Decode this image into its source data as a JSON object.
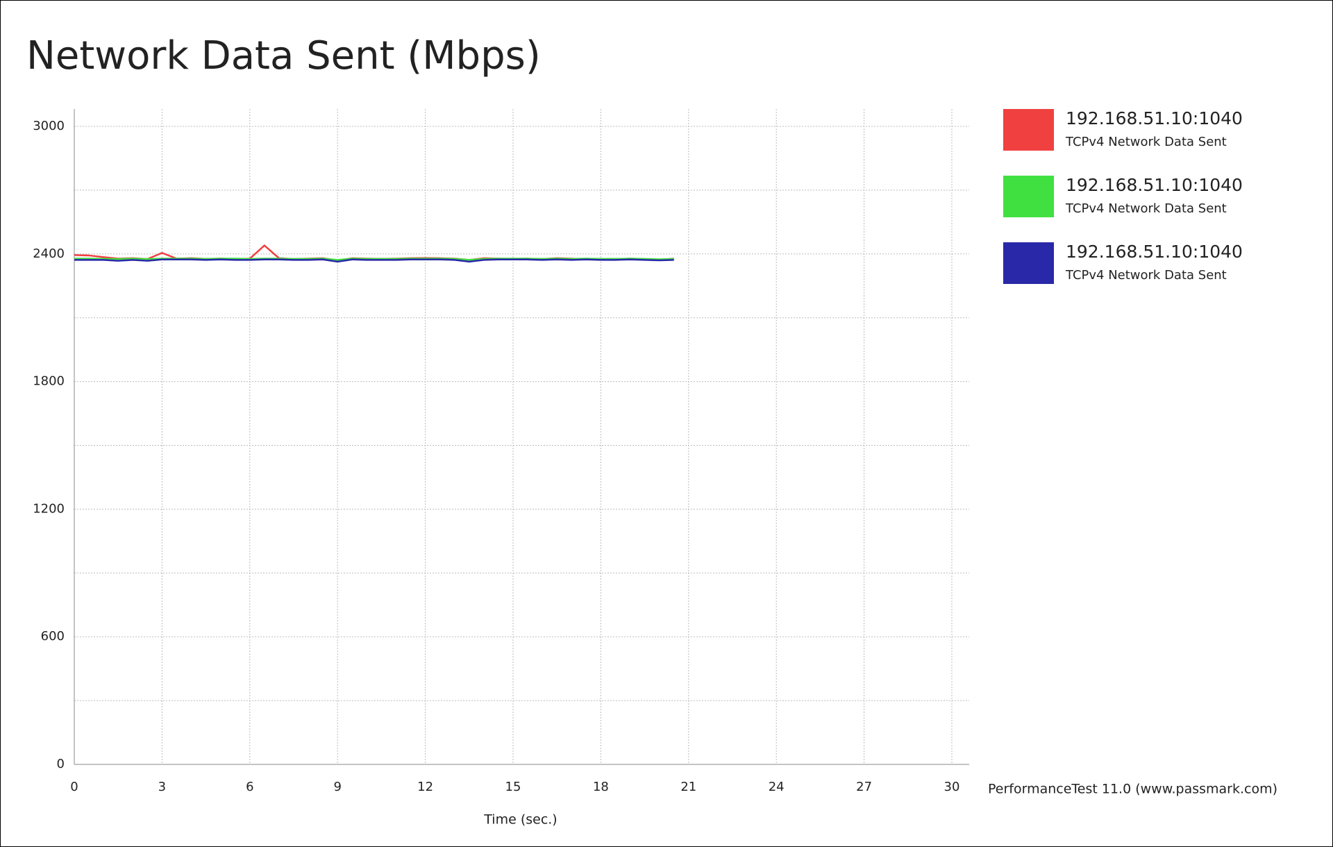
{
  "chart_data": {
    "type": "line",
    "title": "Network Data Sent (Mbps)",
    "x_label": "Time (sec.)",
    "credit": "PerformanceTest 11.0 (www.passmark.com)",
    "x": [
      0,
      0.5,
      1,
      1.5,
      2,
      2.5,
      3,
      3.5,
      4,
      4.5,
      5,
      5.5,
      6,
      6.5,
      7,
      7.5,
      8,
      8.5,
      9,
      9.5,
      10,
      10.5,
      11,
      11.5,
      12,
      12.5,
      13,
      13.5,
      14,
      14.5,
      15,
      15.5,
      16,
      16.5,
      17,
      17.5,
      18,
      18.5,
      19,
      19.5,
      20,
      20.5
    ],
    "series": [
      {
        "name": "192.168.51.10:1040",
        "description": "TCPv4 Network Data Sent",
        "color": "#f04040",
        "values": [
          2395,
          2393,
          2385,
          2378,
          2380,
          2376,
          2405,
          2378,
          2380,
          2377,
          2378,
          2376,
          2378,
          2440,
          2380,
          2376,
          2378,
          2380,
          2370,
          2380,
          2378,
          2377,
          2378,
          2380,
          2381,
          2380,
          2378,
          2372,
          2380,
          2378,
          2377,
          2378,
          2376,
          2380,
          2378,
          2374,
          2376,
          2375,
          2378,
          2376,
          2372,
          2378
        ]
      },
      {
        "name": "192.168.51.10:1040",
        "description": "TCPv4 Network Data Sent",
        "color": "#40e040",
        "values": [
          2378,
          2378,
          2377,
          2376,
          2378,
          2376,
          2378,
          2378,
          2378,
          2377,
          2378,
          2378,
          2377,
          2378,
          2378,
          2377,
          2377,
          2378,
          2372,
          2378,
          2377,
          2377,
          2377,
          2378,
          2378,
          2378,
          2377,
          2372,
          2377,
          2378,
          2378,
          2378,
          2377,
          2378,
          2377,
          2378,
          2377,
          2377,
          2378,
          2377,
          2375,
          2377
        ]
      },
      {
        "name": "192.168.51.10:1040",
        "description": "TCPv4 Network Data Sent",
        "color": "#2828a8",
        "values": [
          2372,
          2372,
          2372,
          2368,
          2372,
          2368,
          2374,
          2374,
          2374,
          2372,
          2374,
          2372,
          2372,
          2374,
          2374,
          2372,
          2372,
          2374,
          2364,
          2374,
          2372,
          2372,
          2372,
          2374,
          2374,
          2374,
          2372,
          2364,
          2372,
          2374,
          2374,
          2374,
          2372,
          2374,
          2372,
          2374,
          2372,
          2372,
          2374,
          2372,
          2370,
          2372
        ]
      }
    ],
    "xlim": [
      0,
      30
    ],
    "xticks": [
      0,
      3,
      6,
      9,
      12,
      15,
      18,
      21,
      24,
      27,
      30
    ],
    "ylim": [
      0,
      3000
    ],
    "yticks": [
      0,
      600,
      1200,
      1800,
      2400,
      3000
    ],
    "y_minor_ticks": [
      300,
      900,
      1500,
      2100,
      2700
    ],
    "grid": true
  }
}
